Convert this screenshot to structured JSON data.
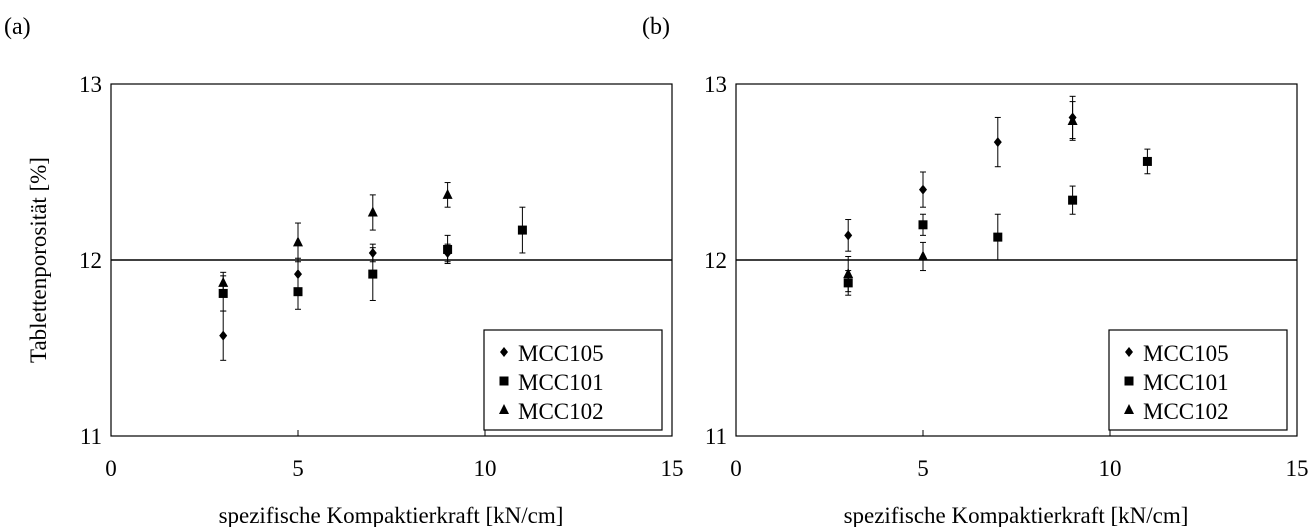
{
  "figure": {
    "panels": [
      "(a)",
      "(b)"
    ],
    "ylabel": "Tablettenporosität [%]",
    "xlabel": "spezifische Kompaktierkraft [kN/cm]"
  },
  "chart_data": [
    {
      "type": "scatter",
      "panel_label": "(a)",
      "xlabel": "spezifische Kompaktierkraft [kN/cm]",
      "ylabel": "Tablettenporosität [%]",
      "xlim": [
        0,
        15
      ],
      "ylim": [
        11,
        13
      ],
      "x_ticks": [
        0,
        5,
        10,
        15
      ],
      "y_ticks": [
        11,
        12,
        13
      ],
      "grid": false,
      "reference_line_y": 12,
      "legend": "bottom-right",
      "series": [
        {
          "name": "MCC105",
          "marker": "diamond",
          "points": [
            {
              "x": 3,
              "y": 11.57,
              "err": 0.14
            },
            {
              "x": 5,
              "y": 11.92,
              "err": 0.09
            },
            {
              "x": 7,
              "y": 12.04,
              "err": 0.05
            },
            {
              "x": 9,
              "y": 12.04,
              "err": 0.05
            }
          ]
        },
        {
          "name": "MCC101",
          "marker": "square",
          "points": [
            {
              "x": 3,
              "y": 11.81,
              "err": 0.1
            },
            {
              "x": 5,
              "y": 11.82,
              "err": 0.1
            },
            {
              "x": 7,
              "y": 11.92,
              "err": 0.15
            },
            {
              "x": 9,
              "y": 12.06,
              "err": 0.08
            },
            {
              "x": 11,
              "y": 12.17,
              "err": 0.13
            }
          ]
        },
        {
          "name": "MCC102",
          "marker": "triangle",
          "points": [
            {
              "x": 3,
              "y": 11.87,
              "err": 0.06
            },
            {
              "x": 5,
              "y": 12.1,
              "err": 0.11
            },
            {
              "x": 7,
              "y": 12.27,
              "err": 0.1
            },
            {
              "x": 9,
              "y": 12.37,
              "err": 0.07
            }
          ]
        }
      ]
    },
    {
      "type": "scatter",
      "panel_label": "(b)",
      "xlabel": "spezifische Kompaktierkraft [kN/cm]",
      "ylabel": "",
      "xlim": [
        0,
        15
      ],
      "ylim": [
        11,
        13
      ],
      "x_ticks": [
        0,
        5,
        10,
        15
      ],
      "y_ticks": [
        11,
        12,
        13
      ],
      "grid": false,
      "reference_line_y": 12,
      "legend": "bottom-right",
      "series": [
        {
          "name": "MCC105",
          "marker": "diamond",
          "points": [
            {
              "x": 3,
              "y": 12.14,
              "err": 0.09
            },
            {
              "x": 5,
              "y": 12.4,
              "err": 0.1
            },
            {
              "x": 7,
              "y": 12.67,
              "err": 0.14
            },
            {
              "x": 9,
              "y": 12.81,
              "err": 0.12
            }
          ]
        },
        {
          "name": "MCC101",
          "marker": "square",
          "points": [
            {
              "x": 3,
              "y": 11.87,
              "err": 0.07
            },
            {
              "x": 5,
              "y": 12.2,
              "err": 0.06
            },
            {
              "x": 7,
              "y": 12.13,
              "err": 0.13
            },
            {
              "x": 9,
              "y": 12.34,
              "err": 0.08
            },
            {
              "x": 11,
              "y": 12.56,
              "err": 0.07
            }
          ]
        },
        {
          "name": "MCC102",
          "marker": "triangle",
          "points": [
            {
              "x": 3,
              "y": 11.92,
              "err": 0.1
            },
            {
              "x": 5,
              "y": 12.02,
              "err": 0.08
            },
            {
              "x": 9,
              "y": 12.79,
              "err": 0.11
            }
          ]
        }
      ]
    }
  ]
}
